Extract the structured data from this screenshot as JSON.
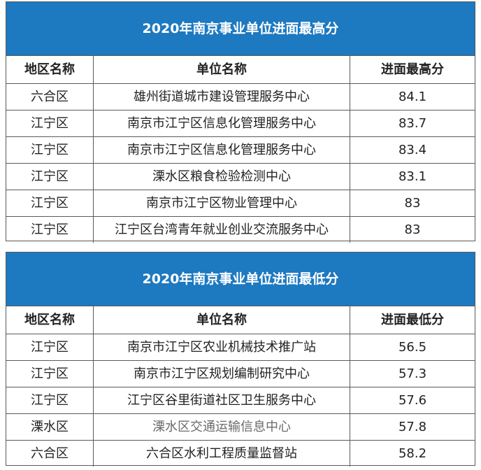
{
  "table_high": {
    "title": "2020年南京事业单位进面最高分",
    "headers": [
      "地区名称",
      "单位名称",
      "进面最高分"
    ],
    "rows": [
      [
        "六合区",
        "雄州街道城市建设管理服务中心",
        "84.1"
      ],
      [
        "江宁区",
        "南京市江宁区信息化管理服务中心",
        "83.7"
      ],
      [
        "江宁区",
        "南京市江宁区信息化管理服务中心",
        "83.4"
      ],
      [
        "江宁区",
        "溧水区粮食检验检测中心",
        "83.1"
      ],
      [
        "江宁区",
        "南京市江宁区物业管理中心",
        "83"
      ],
      [
        "江宁区",
        "江宁区台湾青年就业创业交流服务中心",
        "83"
      ]
    ]
  },
  "table_low": {
    "title": "2020年南京事业单位进面最低分",
    "headers": [
      "地区名称",
      "单位名称",
      "进面最低分"
    ],
    "rows": [
      [
        "江宁区",
        "南京市江宁区农业机械技术推广站",
        "56.5"
      ],
      [
        "江宁区",
        "南京市江宁区规划编制研究中心",
        "57.3"
      ],
      [
        "江宁区",
        "江宁区谷里街道社区卫生服务中心",
        "57.6"
      ],
      [
        "溧水区",
        "溧水区交通运输信息中心",
        "57.8"
      ],
      [
        "六合区",
        "六合区水利工程质量监督站",
        "58.2"
      ]
    ]
  }
}
